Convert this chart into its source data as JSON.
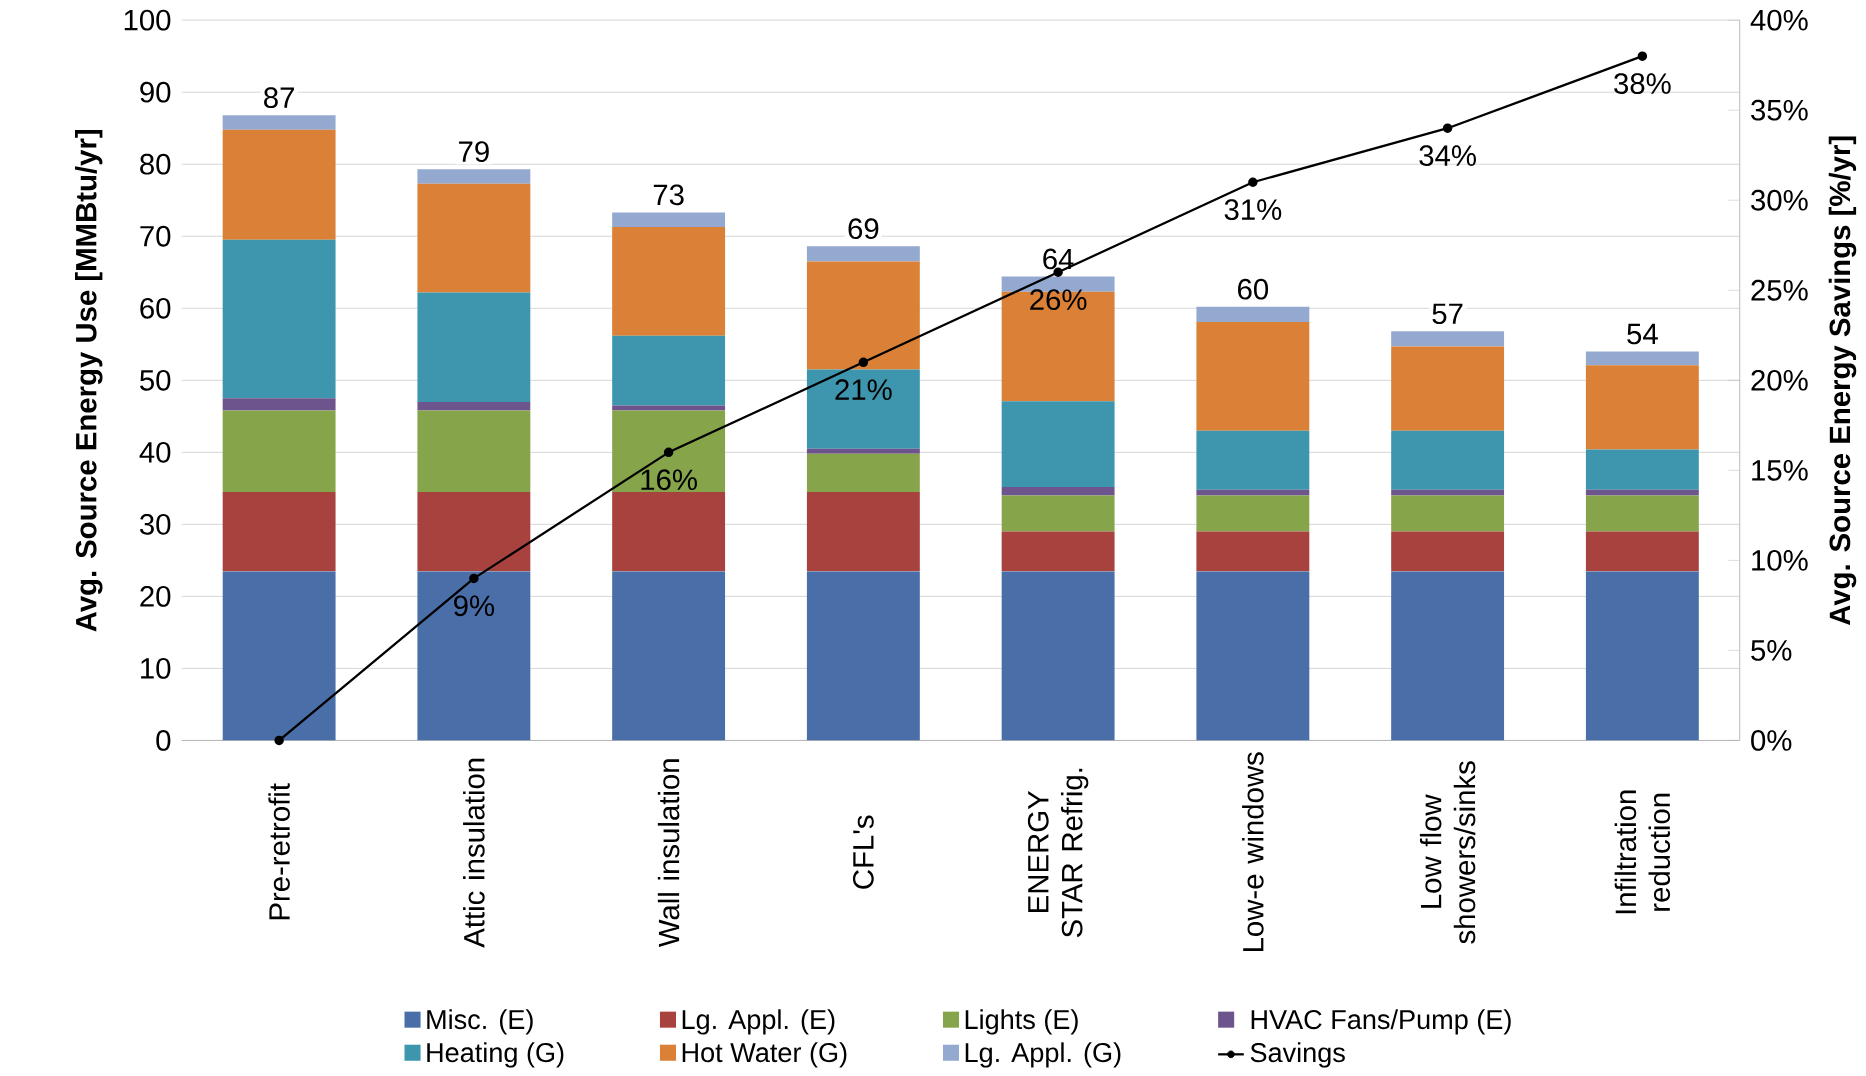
{
  "chart_data": {
    "type": "bar",
    "stacked": true,
    "ylabel": "Avg. Source Energy Use [MMBtu/yr]",
    "y2label": "Avg. Source Energy Savings [%/yr]",
    "categories": [
      "Pre-retrofit",
      "Attic insulation",
      "Wall insulation",
      "CFL's",
      "ENERGY STAR Refrig.",
      "Low-e windows",
      "Low flow showers/sinks",
      "Infiltration reduction"
    ],
    "series": [
      {
        "name": "Misc. (E)",
        "color": "#4a6fa8",
        "values": [
          23.5,
          23.5,
          23.5,
          23.5,
          23.5,
          23.5,
          23.5,
          23.5
        ]
      },
      {
        "name": "Lg. Appl. (E)",
        "color": "#a8423f",
        "values": [
          11,
          11,
          11,
          11,
          5.5,
          5.5,
          5.5,
          5.5
        ]
      },
      {
        "name": "Lights (E)",
        "color": "#86a44a",
        "values": [
          11.3,
          11.3,
          11.3,
          5.3,
          5,
          5,
          5,
          5
        ]
      },
      {
        "name": "HVAC Fans/Pump (E)",
        "color": "#6e548d",
        "values": [
          1.7,
          1.2,
          0.7,
          0.7,
          1.2,
          0.8,
          0.8,
          0.8
        ]
      },
      {
        "name": "Heating (G)",
        "color": "#3d96ae",
        "values": [
          22,
          15.2,
          9.7,
          11,
          11.9,
          8.2,
          8.2,
          5.6
        ]
      },
      {
        "name": "Hot Water (G)",
        "color": "#da8137",
        "values": [
          15.3,
          15.1,
          15.1,
          15,
          15.2,
          15.1,
          11.7,
          11.7
        ]
      },
      {
        "name": "Lg. Appl. (G)",
        "color": "#93a9d0",
        "values": [
          2,
          2,
          2,
          2.1,
          2.1,
          2.1,
          2.1,
          1.9
        ]
      },
      {
        "name": "Savings",
        "type": "line",
        "axis": "y2",
        "color": "#000000",
        "marker": "circle",
        "values": [
          0,
          9,
          16,
          21,
          26,
          31,
          34,
          38
        ],
        "value_labels": [
          null,
          "9%",
          "16%",
          "21%",
          "26%",
          "31%",
          "34%",
          "38%"
        ]
      }
    ],
    "totals": [
      "87",
      "79",
      "73",
      "69",
      "64",
      "60",
      "57",
      "54"
    ],
    "ylim": [
      0,
      100
    ],
    "yticks": [
      0,
      10,
      20,
      30,
      40,
      50,
      60,
      70,
      80,
      90,
      100
    ],
    "y2lim": [
      0,
      40
    ],
    "y2ticks": [
      {
        "value": 0,
        "label": "0%"
      },
      {
        "value": 5,
        "label": "5%"
      },
      {
        "value": 10,
        "label": "10%"
      },
      {
        "value": 15,
        "label": "15%"
      },
      {
        "value": 20,
        "label": "20%"
      },
      {
        "value": 25,
        "label": "25%"
      },
      {
        "value": 30,
        "label": "30%"
      },
      {
        "value": 35,
        "label": "35%"
      },
      {
        "value": 40,
        "label": "40%"
      }
    ],
    "grid": "y",
    "legend": "bottom"
  }
}
